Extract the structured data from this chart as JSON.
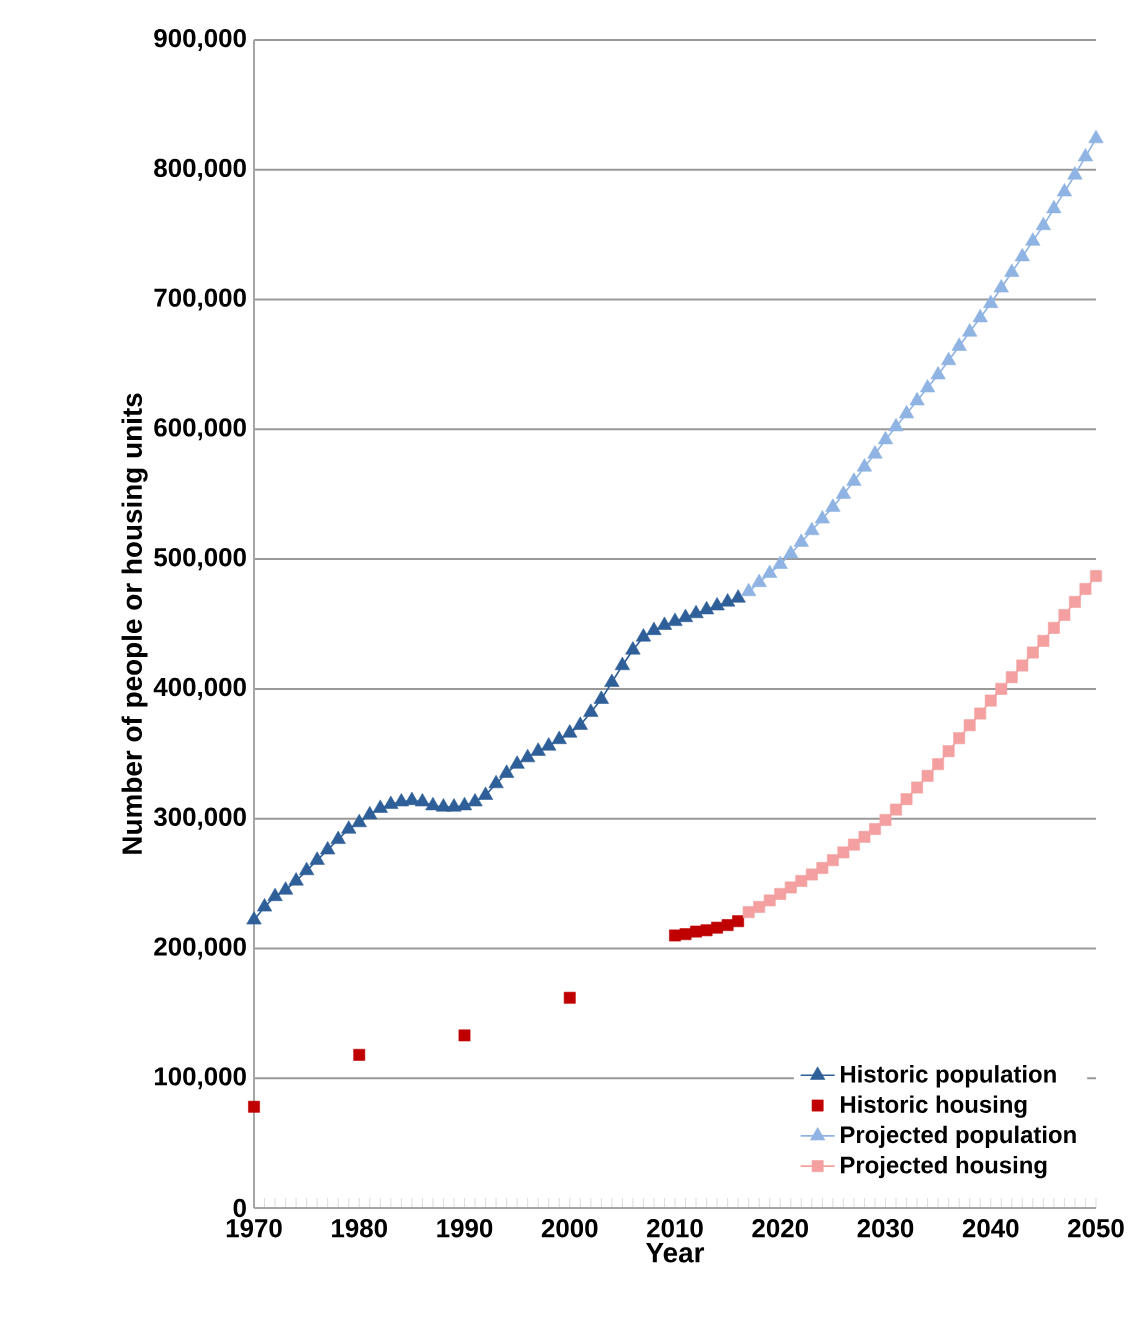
{
  "chart_data": {
    "type": "line",
    "xlabel": "Year",
    "ylabel": "Number of people or housing units",
    "xlim": [
      1970,
      2050
    ],
    "ylim": [
      0,
      900000
    ],
    "xticks": [
      1970,
      {
        "value": 1971,
        "label": null
      },
      {
        "value": 1972,
        "label": null
      },
      {
        "value": 1973,
        "label": null
      },
      {
        "value": 1974,
        "label": null
      },
      {
        "value": 1975,
        "label": null
      },
      {
        "value": 1976,
        "label": null
      },
      {
        "value": 1977,
        "label": null
      },
      {
        "value": 1978,
        "label": null
      },
      {
        "value": 1979,
        "label": null
      },
      1980,
      {
        "value": 1981,
        "label": null
      },
      {
        "value": 1982,
        "label": null
      },
      {
        "value": 1983,
        "label": null
      },
      {
        "value": 1984,
        "label": null
      },
      {
        "value": 1985,
        "label": null
      },
      {
        "value": 1986,
        "label": null
      },
      {
        "value": 1987,
        "label": null
      },
      {
        "value": 1988,
        "label": null
      },
      {
        "value": 1989,
        "label": null
      },
      1990,
      {
        "value": 1991,
        "label": null
      },
      {
        "value": 1992,
        "label": null
      },
      {
        "value": 1993,
        "label": null
      },
      {
        "value": 1994,
        "label": null
      },
      {
        "value": 1995,
        "label": null
      },
      {
        "value": 1996,
        "label": null
      },
      {
        "value": 1997,
        "label": null
      },
      {
        "value": 1998,
        "label": null
      },
      {
        "value": 1999,
        "label": null
      },
      2000,
      {
        "value": 2001,
        "label": null
      },
      {
        "value": 2002,
        "label": null
      },
      {
        "value": 2003,
        "label": null
      },
      {
        "value": 2004,
        "label": null
      },
      {
        "value": 2005,
        "label": null
      },
      {
        "value": 2006,
        "label": null
      },
      {
        "value": 2007,
        "label": null
      },
      {
        "value": 2008,
        "label": null
      },
      {
        "value": 2009,
        "label": null
      },
      2010,
      {
        "value": 2011,
        "label": null
      },
      {
        "value": 2012,
        "label": null
      },
      {
        "value": 2013,
        "label": null
      },
      {
        "value": 2014,
        "label": null
      },
      {
        "value": 2015,
        "label": null
      },
      {
        "value": 2016,
        "label": null
      },
      {
        "value": 2017,
        "label": null
      },
      {
        "value": 2018,
        "label": null
      },
      {
        "value": 2019,
        "label": null
      },
      2020,
      {
        "value": 2021,
        "label": null
      },
      {
        "value": 2022,
        "label": null
      },
      {
        "value": 2023,
        "label": null
      },
      {
        "value": 2024,
        "label": null
      },
      {
        "value": 2025,
        "label": null
      },
      {
        "value": 2026,
        "label": null
      },
      {
        "value": 2027,
        "label": null
      },
      {
        "value": 2028,
        "label": null
      },
      {
        "value": 2029,
        "label": null
      },
      2030,
      {
        "value": 2031,
        "label": null
      },
      {
        "value": 2032,
        "label": null
      },
      {
        "value": 2033,
        "label": null
      },
      {
        "value": 2034,
        "label": null
      },
      {
        "value": 2035,
        "label": null
      },
      {
        "value": 2036,
        "label": null
      },
      {
        "value": 2037,
        "label": null
      },
      {
        "value": 2038,
        "label": null
      },
      {
        "value": 2039,
        "label": null
      },
      2040,
      {
        "value": 2041,
        "label": null
      },
      {
        "value": 2042,
        "label": null
      },
      {
        "value": 2043,
        "label": null
      },
      {
        "value": 2044,
        "label": null
      },
      {
        "value": 2045,
        "label": null
      },
      {
        "value": 2046,
        "label": null
      },
      {
        "value": 2047,
        "label": null
      },
      {
        "value": 2048,
        "label": null
      },
      {
        "value": 2049,
        "label": null
      },
      2050
    ],
    "yticks": [
      0,
      {
        "value": 100000,
        "label": "100,000"
      },
      {
        "value": 200000,
        "label": "200,000"
      },
      {
        "value": 300000,
        "label": "300,000"
      },
      {
        "value": 400000,
        "label": "400,000"
      },
      {
        "value": 500000,
        "label": "500,000"
      },
      {
        "value": 600000,
        "label": "600,000"
      },
      {
        "value": 700000,
        "label": "700,000"
      },
      {
        "value": 800000,
        "label": "800,000"
      },
      {
        "value": 900000,
        "label": "900,000"
      }
    ],
    "grid": "y",
    "legend": "bottom right",
    "series": [
      {
        "name": "Historic population",
        "marker": "triangle",
        "color": "#2f5f98",
        "x": [
          1970,
          1971,
          1972,
          1973,
          1974,
          1975,
          1976,
          1977,
          1978,
          1979,
          1980,
          1981,
          1982,
          1983,
          1984,
          1985,
          1986,
          1987,
          1988,
          1989,
          1990,
          1991,
          1992,
          1993,
          1994,
          1995,
          1996,
          1997,
          1998,
          1999,
          2000,
          2001,
          2002,
          2003,
          2004,
          2005,
          2006,
          2007,
          2008,
          2009,
          2010,
          2011,
          2012,
          2013,
          2014,
          2015,
          2016
        ],
        "values": [
          222000,
          232000,
          240000,
          245000,
          252000,
          260000,
          268000,
          276000,
          284000,
          292000,
          297000,
          303000,
          308000,
          311000,
          313000,
          314000,
          313000,
          310000,
          309000,
          309000,
          310000,
          313000,
          318000,
          327000,
          335000,
          342000,
          347000,
          352000,
          356000,
          361000,
          366000,
          372000,
          382000,
          392000,
          405000,
          418000,
          430000,
          440000,
          445000,
          449000,
          452000,
          455000,
          458000,
          461000,
          464000,
          467000,
          470000
        ]
      },
      {
        "name": "Historic housing",
        "type": "scatter",
        "marker": "square",
        "color": "#c00000",
        "x": [
          1970,
          1980,
          1990,
          2000,
          2010,
          2011,
          2012,
          2013,
          2014,
          2015,
          2016
        ],
        "values": [
          78000,
          118000,
          133000,
          162000,
          210000,
          211000,
          213000,
          214000,
          216000,
          218000,
          221000
        ]
      },
      {
        "name": "Projected population",
        "marker": "triangle",
        "color": "#8fb4e3",
        "x": [
          2017,
          2018,
          2019,
          2020,
          2021,
          2022,
          2023,
          2024,
          2025,
          2026,
          2027,
          2028,
          2029,
          2030,
          2031,
          2032,
          2033,
          2034,
          2035,
          2036,
          2037,
          2038,
          2039,
          2040,
          2041,
          2042,
          2043,
          2044,
          2045,
          2046,
          2047,
          2048,
          2049,
          2050
        ],
        "values": [
          475000,
          482000,
          489000,
          496000,
          504000,
          513000,
          522000,
          531000,
          540000,
          550000,
          560000,
          571000,
          581000,
          592000,
          602000,
          612000,
          622000,
          632000,
          642000,
          653000,
          664000,
          675000,
          686000,
          697000,
          709000,
          721000,
          733000,
          745000,
          757000,
          770000,
          783000,
          796000,
          810000,
          824000
        ]
      },
      {
        "name": "Projected housing",
        "marker": "square",
        "color": "#f4a0a0",
        "x": [
          2017,
          2018,
          2019,
          2020,
          2021,
          2022,
          2023,
          2024,
          2025,
          2026,
          2027,
          2028,
          2029,
          2030,
          2031,
          2032,
          2033,
          2034,
          2035,
          2036,
          2037,
          2038,
          2039,
          2040,
          2041,
          2042,
          2043,
          2044,
          2045,
          2046,
          2047,
          2048,
          2049,
          2050
        ],
        "values": [
          228000,
          232000,
          237000,
          242000,
          247000,
          252000,
          257000,
          262000,
          268000,
          274000,
          280000,
          286000,
          292000,
          299000,
          307000,
          315000,
          324000,
          333000,
          342000,
          352000,
          362000,
          372000,
          381000,
          391000,
          400000,
          409000,
          418000,
          428000,
          437000,
          447000,
          457000,
          467000,
          477000,
          487000
        ]
      }
    ]
  }
}
